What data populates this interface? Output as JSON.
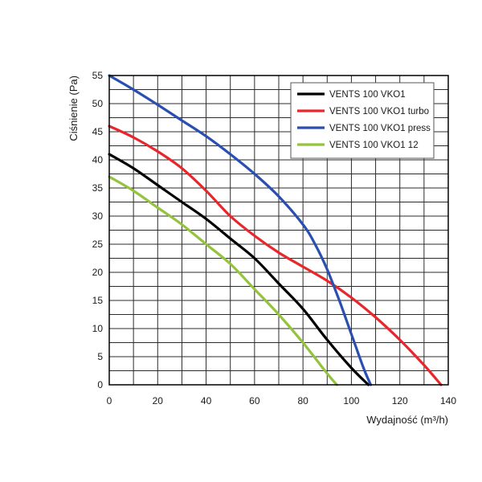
{
  "chart_data": {
    "type": "line",
    "xlabel": "Wydajność (m³/h)",
    "ylabel": "Ciśnienie (Pa)",
    "xlim": [
      0,
      140
    ],
    "ylim": [
      0,
      55
    ],
    "x_ticks": [
      0,
      20,
      40,
      60,
      80,
      100,
      120,
      140
    ],
    "y_ticks": [
      0,
      5,
      10,
      15,
      20,
      25,
      30,
      35,
      40,
      45,
      50,
      55
    ],
    "x_minor_step": 10,
    "y_minor_step": 2.5,
    "grid": true,
    "legend_position": "top-right",
    "series": [
      {
        "name": "VENTS 100 VKO1",
        "color": "#000000",
        "points": [
          [
            0,
            41
          ],
          [
            10,
            38.5
          ],
          [
            20,
            35.5
          ],
          [
            30,
            32.5
          ],
          [
            40,
            29.5
          ],
          [
            50,
            26
          ],
          [
            60,
            22.5
          ],
          [
            70,
            18
          ],
          [
            80,
            13.5
          ],
          [
            90,
            8
          ],
          [
            100,
            3
          ],
          [
            107,
            0
          ]
        ]
      },
      {
        "name": "VENTS 100 VKO1 turbo",
        "color": "#e8272d",
        "points": [
          [
            0,
            46
          ],
          [
            10,
            44
          ],
          [
            20,
            41.5
          ],
          [
            30,
            38.5
          ],
          [
            40,
            34.5
          ],
          [
            50,
            30
          ],
          [
            60,
            26.5
          ],
          [
            70,
            23.5
          ],
          [
            80,
            21
          ],
          [
            90,
            18.5
          ],
          [
            100,
            15.5
          ],
          [
            110,
            12
          ],
          [
            120,
            8
          ],
          [
            130,
            3.5
          ],
          [
            137,
            0
          ]
        ]
      },
      {
        "name": "VENTS 100 VKO1 press",
        "color": "#2a4fb0",
        "points": [
          [
            0,
            55
          ],
          [
            10,
            52.5
          ],
          [
            20,
            49.8
          ],
          [
            30,
            47
          ],
          [
            40,
            44.2
          ],
          [
            50,
            41
          ],
          [
            60,
            37.5
          ],
          [
            70,
            33.5
          ],
          [
            80,
            28.5
          ],
          [
            85,
            25
          ],
          [
            90,
            20.5
          ],
          [
            95,
            15
          ],
          [
            100,
            9
          ],
          [
            105,
            3
          ],
          [
            108,
            0
          ]
        ]
      },
      {
        "name": "VENTS 100 VKO1 12",
        "color": "#94c33c",
        "points": [
          [
            0,
            37
          ],
          [
            10,
            34.5
          ],
          [
            20,
            31.5
          ],
          [
            30,
            28.5
          ],
          [
            40,
            25
          ],
          [
            50,
            21.5
          ],
          [
            60,
            17
          ],
          [
            70,
            12.5
          ],
          [
            80,
            7.5
          ],
          [
            90,
            2
          ],
          [
            94,
            0
          ]
        ]
      }
    ]
  }
}
